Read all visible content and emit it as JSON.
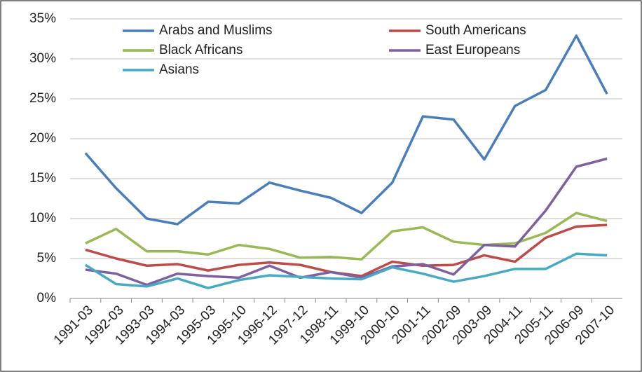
{
  "chart_data": {
    "type": "line",
    "categories": [
      "1991-03",
      "1992-03",
      "1993-03",
      "1994-03",
      "1995-03",
      "1995-10",
      "1996-12",
      "1997-12",
      "1998-11",
      "1999-10",
      "2000-10",
      "2001-11",
      "2002-09",
      "2003-09",
      "2004-11",
      "2005-11",
      "2006-09",
      "2007-10"
    ],
    "series": [
      {
        "name": "Arabs and Muslims",
        "color": "#4a7ebb",
        "values": [
          18.2,
          13.8,
          10.0,
          9.3,
          12.1,
          11.9,
          14.5,
          13.5,
          12.6,
          10.7,
          14.5,
          22.8,
          22.4,
          17.4,
          24.1,
          26.1,
          32.9,
          25.6
        ]
      },
      {
        "name": "South Americans",
        "color": "#be4b48",
        "values": [
          6.1,
          5.0,
          4.1,
          4.3,
          3.5,
          4.2,
          4.5,
          4.2,
          3.3,
          2.8,
          4.6,
          4.1,
          4.2,
          5.4,
          4.6,
          7.6,
          9.0,
          9.2
        ]
      },
      {
        "name": "Black Africans",
        "color": "#98b954",
        "values": [
          6.9,
          8.7,
          5.9,
          5.9,
          5.5,
          6.7,
          6.2,
          5.1,
          5.2,
          4.9,
          8.4,
          8.9,
          7.1,
          6.7,
          6.9,
          8.2,
          10.7,
          9.7
        ]
      },
      {
        "name": "East Europeans",
        "color": "#7d60a0",
        "values": [
          3.6,
          3.1,
          1.7,
          3.1,
          2.8,
          2.6,
          4.1,
          2.6,
          3.3,
          2.6,
          4.0,
          4.3,
          3.0,
          6.7,
          6.5,
          11.0,
          16.5,
          17.5
        ]
      },
      {
        "name": "Asians",
        "color": "#46aac5",
        "values": [
          4.2,
          1.8,
          1.5,
          2.5,
          1.3,
          2.3,
          2.9,
          2.7,
          2.5,
          2.4,
          3.9,
          3.1,
          2.1,
          2.8,
          3.7,
          3.7,
          5.6,
          5.4
        ]
      }
    ],
    "ylim": [
      0,
      35
    ],
    "yticks": [
      {
        "value": 0,
        "label": "0%"
      },
      {
        "value": 5,
        "label": "5%"
      },
      {
        "value": 10,
        "label": "10%"
      },
      {
        "value": 15,
        "label": "15%"
      },
      {
        "value": 20,
        "label": "20%"
      },
      {
        "value": 25,
        "label": "25%"
      },
      {
        "value": 30,
        "label": "30%"
      },
      {
        "value": 35,
        "label": "35%"
      }
    ],
    "grid": true
  }
}
